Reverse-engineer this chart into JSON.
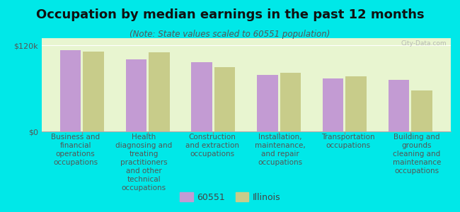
{
  "title": "Occupation by median earnings in the past 12 months",
  "subtitle": "(Note: State values scaled to 60551 population)",
  "background_color": "#00e8e8",
  "plot_bg_top": "#e8f5d0",
  "plot_bg_bottom": "#f5faf0",
  "categories": [
    "Business and\nfinancial\noperations\noccupations",
    "Health\ndiagnosing and\ntreating\npractitioners\nand other\ntechnical\noccupations",
    "Construction\nand extraction\noccupations",
    "Installation,\nmaintenance,\nand repair\noccupations",
    "Transportation\noccupations",
    "Building and\ngrounds\ncleaning and\nmaintenance\noccupations"
  ],
  "values_60551": [
    113000,
    100000,
    97000,
    79000,
    74000,
    72000
  ],
  "values_illinois": [
    111000,
    110000,
    90000,
    82000,
    77000,
    57000
  ],
  "color_60551": "#c39bd3",
  "color_illinois": "#c8cc8a",
  "ylim": [
    0,
    130000
  ],
  "yticks": [
    0,
    120000
  ],
  "ytick_labels": [
    "$0",
    "$120k"
  ],
  "legend_label_60551": "60551",
  "legend_label_illinois": "Illinois",
  "watermark": "City-Data.com",
  "title_fontsize": 13,
  "subtitle_fontsize": 8.5,
  "tick_label_fontsize": 7.5,
  "ytick_fontsize": 8,
  "legend_fontsize": 9
}
